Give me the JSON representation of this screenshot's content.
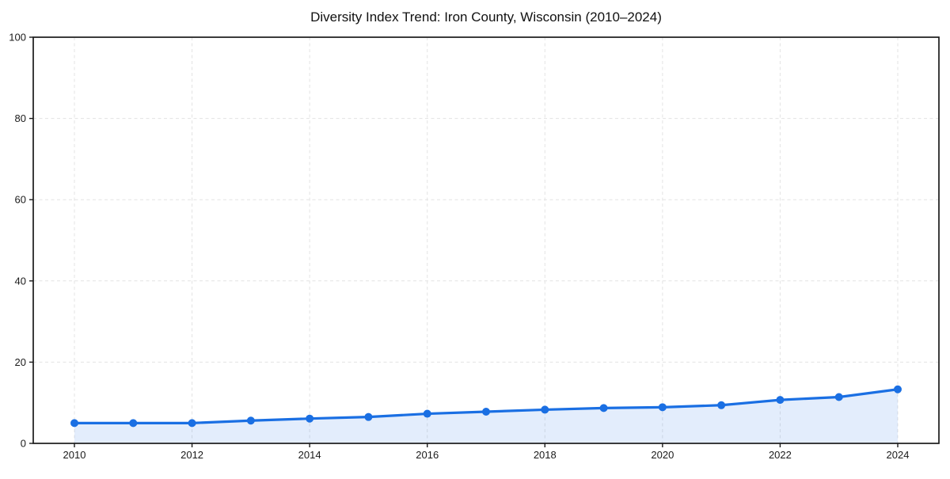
{
  "chart_data": {
    "type": "line",
    "title": "Diversity Index Trend: Iron County, Wisconsin (2010–2024)",
    "x": [
      2010,
      2011,
      2012,
      2013,
      2014,
      2015,
      2016,
      2017,
      2018,
      2019,
      2020,
      2021,
      2022,
      2023,
      2024
    ],
    "series": [
      {
        "name": "Diversity Index",
        "values": [
          5.0,
          5.0,
          5.0,
          5.6,
          6.1,
          6.5,
          7.3,
          7.8,
          8.3,
          8.7,
          8.9,
          9.4,
          10.7,
          11.4,
          13.3
        ]
      }
    ],
    "xlabel": "",
    "ylabel": "",
    "xlim": [
      2009.3,
      2024.7
    ],
    "ylim": [
      0,
      100
    ],
    "xticks": [
      2010,
      2012,
      2014,
      2016,
      2018,
      2020,
      2022,
      2024
    ],
    "yticks": [
      0,
      20,
      40,
      60,
      80,
      100
    ],
    "grid": true,
    "grid_style": "dashed",
    "legend_position": "none",
    "area_fill": true,
    "colors": {
      "line": "#1a6fe3",
      "marker": "#1a6fe3",
      "fill": "rgba(26, 111, 227, 0.12)",
      "grid": "#e3e3e3",
      "axis": "#1a1a1a",
      "tick_label": "#1a1a1a",
      "title": "#111111",
      "background": "#ffffff"
    }
  }
}
